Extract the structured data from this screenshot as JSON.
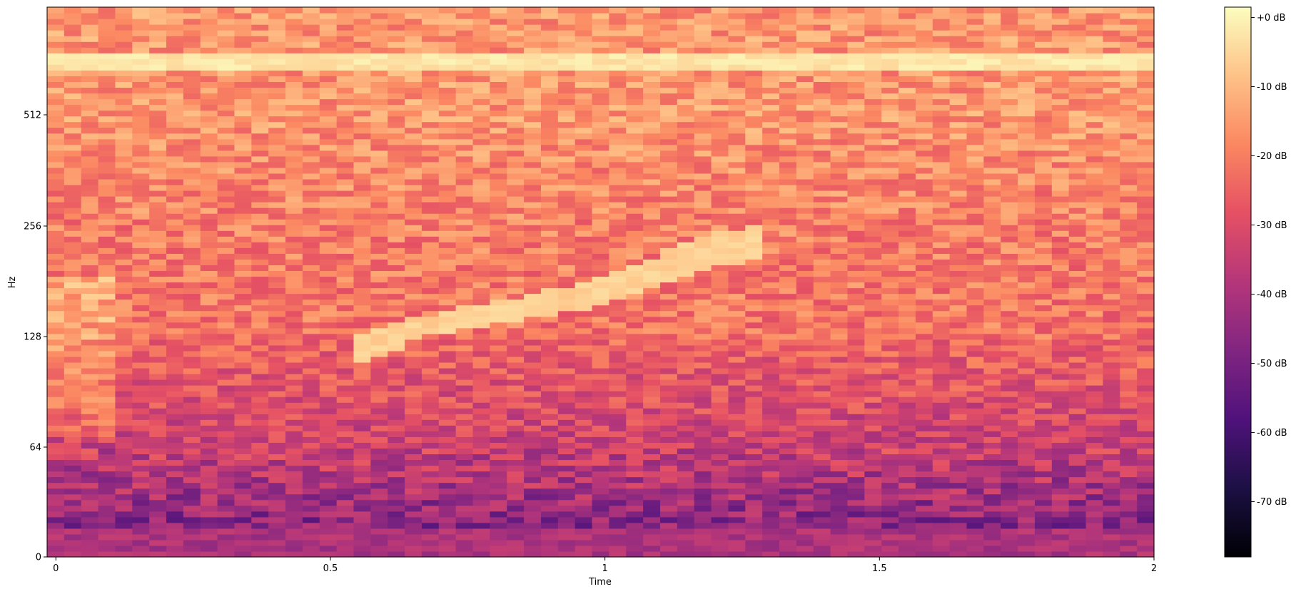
{
  "chart_data": {
    "type": "heatmap",
    "title": "",
    "xlabel": "Time",
    "ylabel": "Hz",
    "xlim": [
      -0.016,
      2.0
    ],
    "x_ticks": [
      {
        "value": 0,
        "label": "0"
      },
      {
        "value": 0.5,
        "label": "0.5"
      },
      {
        "value": 1.0,
        "label": "1"
      },
      {
        "value": 1.5,
        "label": "1.5"
      },
      {
        "value": 2.0,
        "label": "2"
      }
    ],
    "y_scale": "mel",
    "y_ticks": [
      {
        "value": 0,
        "label": "0"
      },
      {
        "value": 64,
        "label": "64"
      },
      {
        "value": 128,
        "label": "128"
      },
      {
        "value": 256,
        "label": "256"
      },
      {
        "value": 512,
        "label": "512"
      }
    ],
    "colormap": "magma",
    "colorbar": {
      "min_db": -78,
      "max_db": 1.5,
      "ticks": [
        {
          "value": 0,
          "label": "+0 dB"
        },
        {
          "value": -10,
          "label": "-10 dB"
        },
        {
          "value": -20,
          "label": "-20 dB"
        },
        {
          "value": -30,
          "label": "-30 dB"
        },
        {
          "value": -40,
          "label": "-40 dB"
        },
        {
          "value": -50,
          "label": "-50 dB"
        },
        {
          "value": -60,
          "label": "-60 dB"
        },
        {
          "value": -70,
          "label": "-70 dB"
        }
      ]
    },
    "features": {
      "rising_tone_hz": [
        [
          0.55,
          122
        ],
        [
          0.65,
          138
        ],
        [
          0.8,
          155
        ],
        [
          0.95,
          175
        ],
        [
          1.05,
          195
        ],
        [
          1.2,
          228
        ],
        [
          1.3,
          240
        ]
      ],
      "bright_band_hz": 640,
      "dark_low_region_below_hz": 64
    }
  }
}
